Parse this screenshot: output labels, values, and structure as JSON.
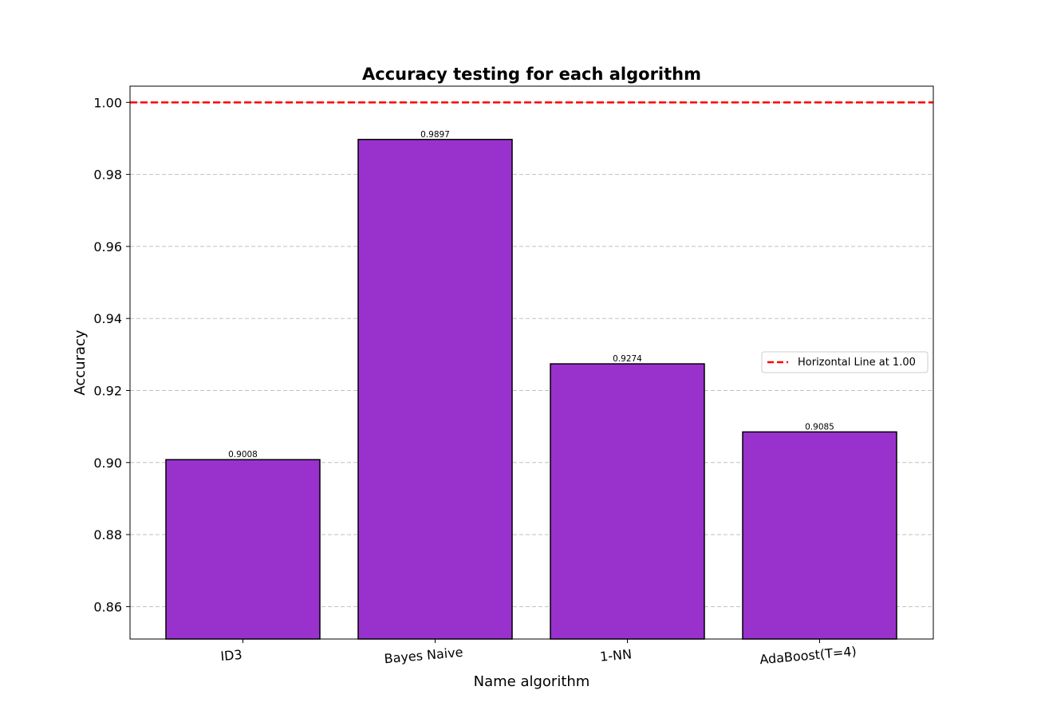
{
  "chart_data": {
    "type": "bar",
    "title": "Accuracy testing for each algorithm",
    "xlabel": "Name algorithm",
    "ylabel": "Accuracy",
    "categories": [
      "ID3",
      "Bayes Naive",
      "1-NN",
      "AdaBoost(T=4)"
    ],
    "values": [
      0.9008,
      0.9897,
      0.9274,
      0.9085
    ],
    "value_labels": [
      "0.9008",
      "0.9897",
      "0.9274",
      "0.9085"
    ],
    "ylim": [
      0.851,
      1.0045
    ],
    "yticks": [
      0.86,
      0.88,
      0.9,
      0.92,
      0.94,
      0.96,
      0.98,
      1.0
    ],
    "ytick_labels": [
      "0.86",
      "0.88",
      "0.90",
      "0.92",
      "0.94",
      "0.96",
      "0.98",
      "1.00"
    ],
    "xtick_rotation_deg": 5,
    "bar_color": "#9932cc",
    "bar_edge_color": "#000000",
    "grid": {
      "axis": "y",
      "style": "dashed",
      "color": "#c0c0c0"
    },
    "reference_line": {
      "y": 1.0,
      "color": "#ff0000",
      "style": "dashed",
      "label": "Horizontal Line at 1.00"
    },
    "legend": {
      "position": "center-right",
      "entries": [
        "Horizontal Line at 1.00"
      ]
    }
  }
}
